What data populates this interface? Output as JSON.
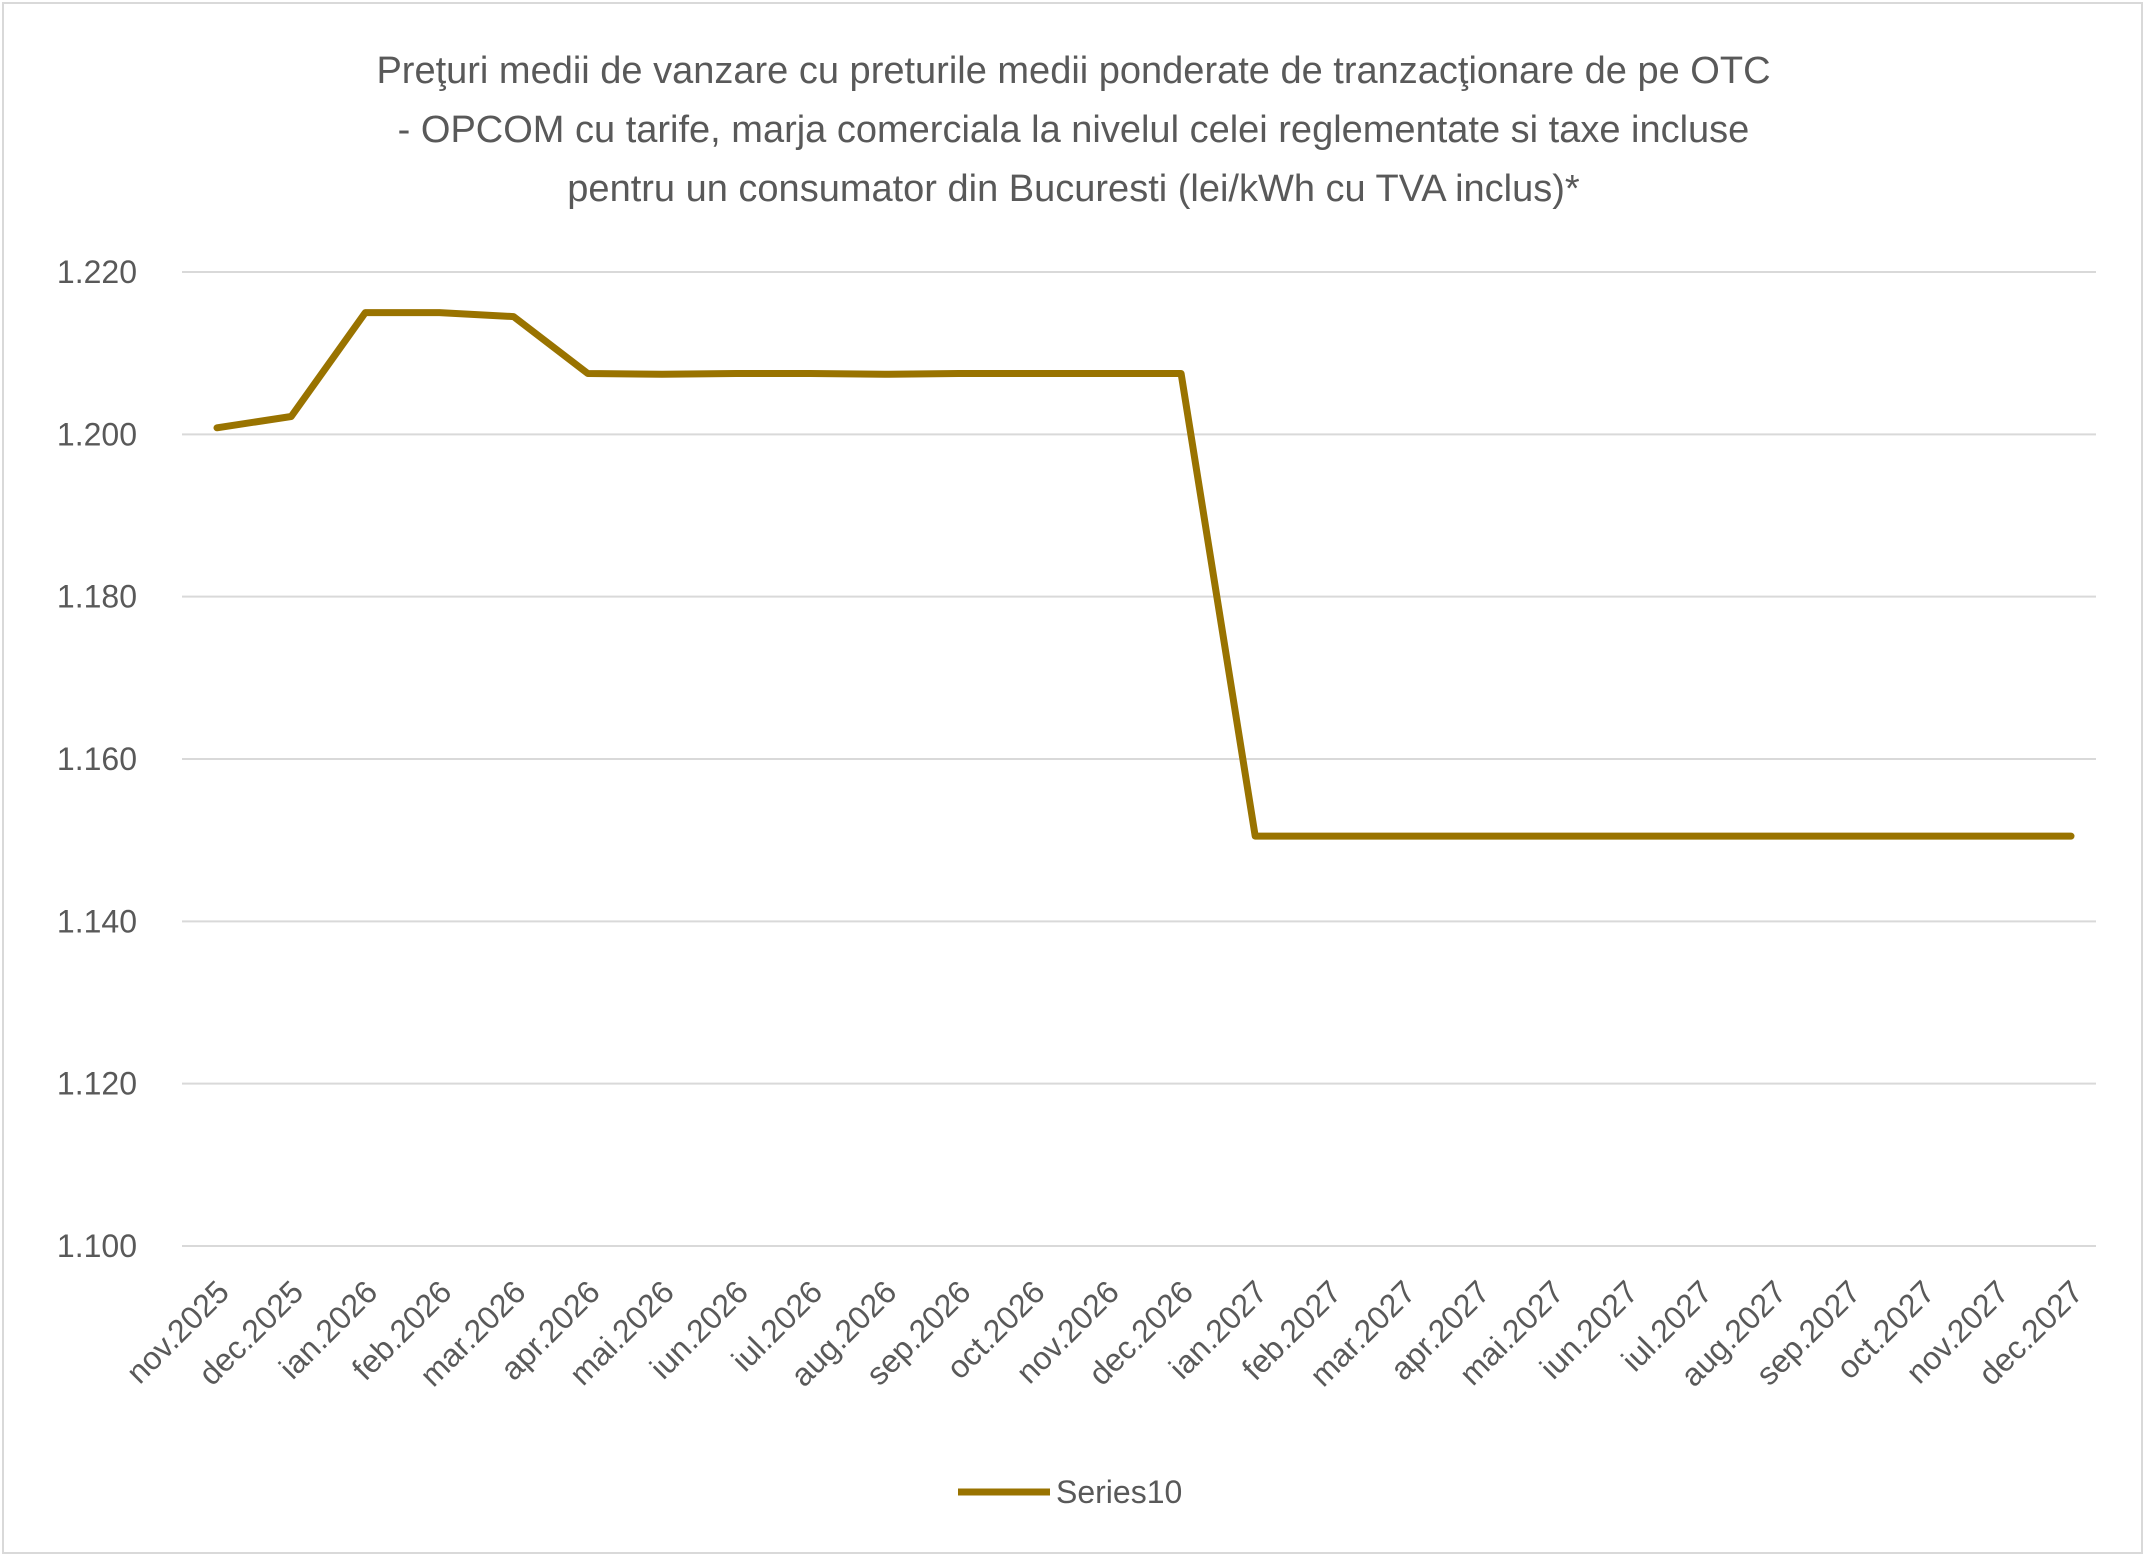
{
  "chart_data": {
    "type": "line",
    "title_lines": [
      "Preţuri medii de vanzare cu preturile medii ponderate de tranzacţionare de pe OTC",
      "- OPCOM cu tarife, marja comerciala la nivelul celei reglementate si taxe incluse",
      "pentru un consumator din Bucuresti (lei/kWh cu TVA inclus)*"
    ],
    "categories": [
      "nov.2025",
      "dec.2025",
      "ian.2026",
      "feb.2026",
      "mar.2026",
      "apr.2026",
      "mai.2026",
      "iun.2026",
      "iul.2026",
      "aug.2026",
      "sep.2026",
      "oct.2026",
      "nov.2026",
      "dec.2026",
      "ian.2027",
      "feb.2027",
      "mar.2027",
      "apr.2027",
      "mai.2027",
      "iun.2027",
      "iul.2027",
      "aug.2027",
      "sep.2027",
      "oct.2027",
      "nov.2027",
      "dec.2027"
    ],
    "series": [
      {
        "name": "Series10",
        "color": "#997300",
        "values": [
          1.2008,
          1.2022,
          1.215,
          1.215,
          1.2145,
          1.2075,
          1.2074,
          1.2075,
          1.2075,
          1.2074,
          1.2075,
          1.2075,
          1.2075,
          1.2075,
          1.1505,
          1.1505,
          1.1505,
          1.1505,
          1.1505,
          1.1505,
          1.1505,
          1.1505,
          1.1505,
          1.1505,
          1.1505,
          1.1505
        ]
      }
    ],
    "yticks": [
      "1.100",
      "1.120",
      "1.140",
      "1.160",
      "1.180",
      "1.200",
      "1.220"
    ],
    "ylim": [
      1.1,
      1.22
    ],
    "grid": true,
    "legend_position": "bottom"
  }
}
